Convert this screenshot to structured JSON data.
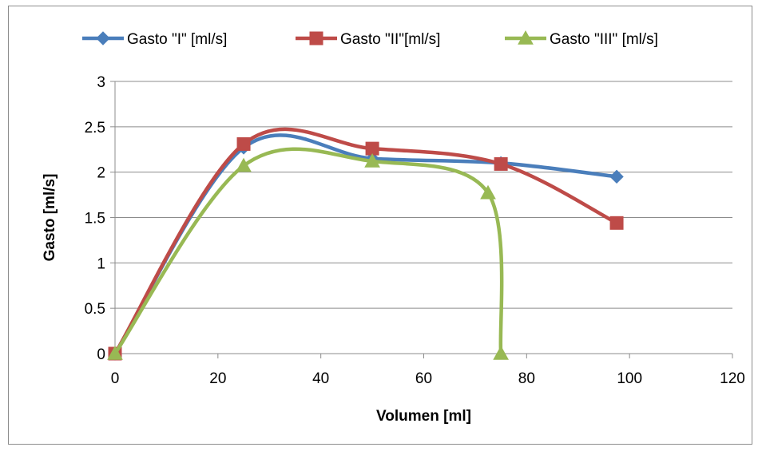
{
  "chart_data": {
    "type": "scatter",
    "title": "",
    "xlabel": "Volumen [ml]",
    "ylabel": "Gasto [ml/s]",
    "xlim": [
      0,
      120
    ],
    "ylim": [
      0,
      3
    ],
    "x_ticks": [
      "0",
      "20",
      "40",
      "60",
      "80",
      "100",
      "120"
    ],
    "y_ticks": [
      "0",
      "0.5",
      "1",
      "1.5",
      "2",
      "2.5",
      "3"
    ],
    "grid": "horizontal",
    "legend_position": "top",
    "smooth_lines": true,
    "series": [
      {
        "name": "Gasto \"I\" [ml/s]",
        "color": "#4a7ebb",
        "marker": "diamond",
        "points": [
          [
            0,
            0
          ],
          [
            25,
            2.27
          ],
          [
            50,
            2.15
          ],
          [
            75,
            2.1
          ],
          [
            97.5,
            1.95
          ]
        ]
      },
      {
        "name": "Gasto \"II\"[ml/s]",
        "color": "#be4b48",
        "marker": "square",
        "points": [
          [
            0,
            0
          ],
          [
            25,
            2.31
          ],
          [
            50,
            2.26
          ],
          [
            75,
            2.09
          ],
          [
            97.5,
            1.44
          ]
        ]
      },
      {
        "name": "Gasto \"III\" [ml/s]",
        "color": "#98b954",
        "marker": "triangle",
        "points": [
          [
            0,
            0
          ],
          [
            25,
            2.07
          ],
          [
            50,
            2.12
          ],
          [
            72.5,
            1.77
          ],
          [
            75,
            0
          ]
        ]
      }
    ]
  }
}
